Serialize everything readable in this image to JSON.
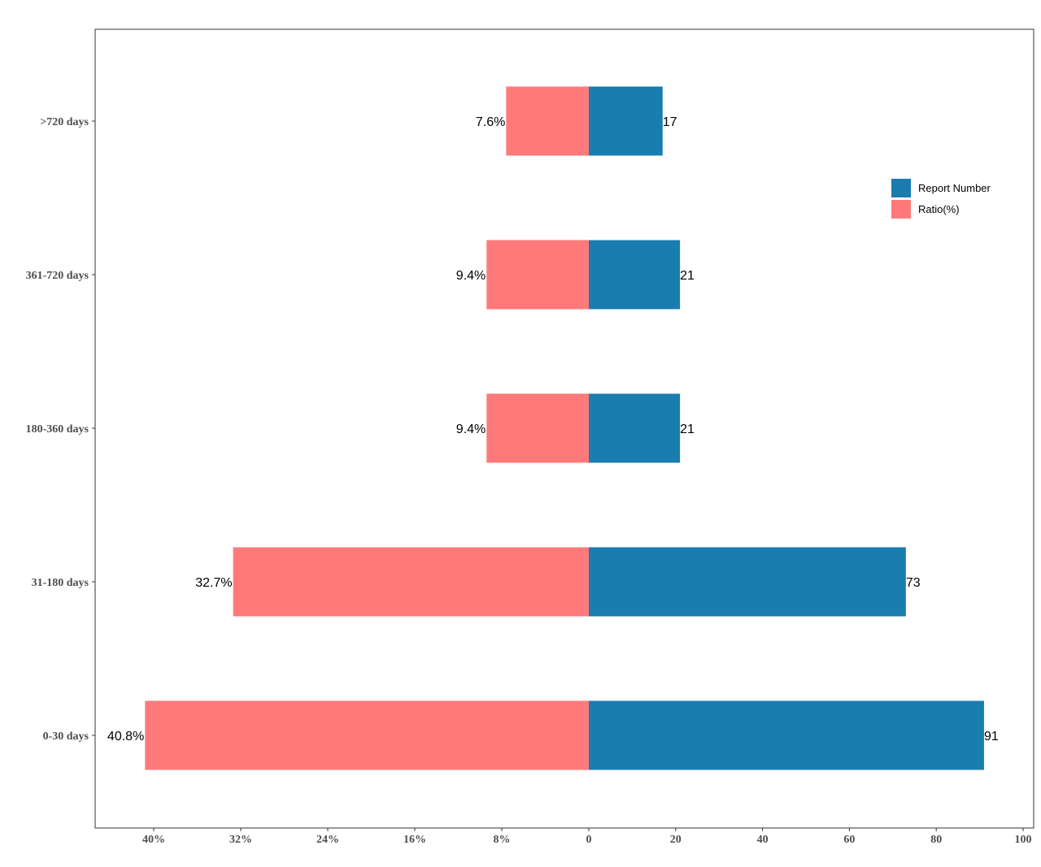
{
  "chart_data": {
    "type": "bar",
    "orientation": "horizontal",
    "layout": "back-to-back",
    "categories": [
      ">720 days",
      "361-720 days",
      "180-360 days",
      "31-180 days",
      "0-30 days"
    ],
    "series": [
      {
        "name": "Report Number",
        "side": "right",
        "color": "#1a7db0",
        "values": [
          17,
          21,
          21,
          73,
          91
        ],
        "labels": [
          "17",
          "21",
          "21",
          "73",
          "91"
        ]
      },
      {
        "name": "Ratio(%)",
        "side": "left",
        "color": "#fe7a7a",
        "values": [
          7.6,
          9.4,
          9.4,
          32.7,
          40.8
        ],
        "labels": [
          "7.6%",
          "9.4%",
          "9.4%",
          "32.7%",
          "40.8%"
        ]
      }
    ],
    "left_axis": {
      "ticks": [
        40,
        32,
        24,
        16,
        8
      ],
      "tick_labels": [
        "40%",
        "32%",
        "24%",
        "16%",
        "8%"
      ]
    },
    "right_axis": {
      "range": [
        0,
        100
      ],
      "ticks": [
        0,
        20,
        40,
        60,
        80,
        100
      ],
      "tick_labels": [
        "0",
        "20",
        "40",
        "60",
        "80",
        "100"
      ]
    },
    "grid": false,
    "legend_position": "top-right"
  }
}
